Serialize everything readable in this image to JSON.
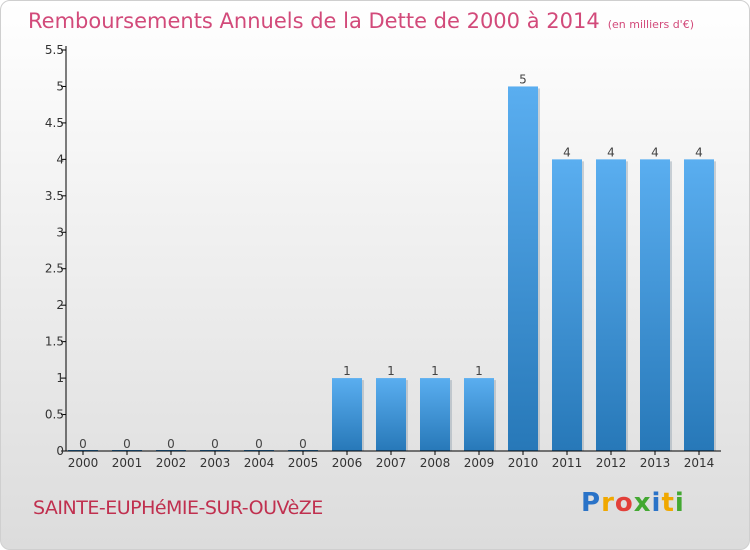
{
  "header": {
    "title": "Remboursements Annuels de la Dette de 2000 à 2014",
    "subtitle": "(en milliers d'€)"
  },
  "footer": {
    "commune": "SAINTE-EUPHéMIE-SUR-OUVèZE",
    "logo": [
      "P",
      "r",
      "o",
      "x",
      "i",
      "t",
      "i"
    ],
    "logo_colors": [
      "#2a73c8",
      "#f0a800",
      "#e2403a",
      "#43a832",
      "#2a73c8",
      "#f0a800",
      "#43a832"
    ]
  },
  "colors": {
    "title": "#d24a7a",
    "bar_top": "#5aaef0",
    "bar_bottom": "#2778b8",
    "axis": "#000000"
  },
  "chart_data": {
    "type": "bar",
    "categories": [
      "2000",
      "2001",
      "2002",
      "2003",
      "2004",
      "2005",
      "2006",
      "2007",
      "2008",
      "2009",
      "2010",
      "2011",
      "2012",
      "2013",
      "2014"
    ],
    "values": [
      0,
      0,
      0,
      0,
      0,
      0,
      1,
      1,
      1,
      1,
      5,
      4,
      4,
      4,
      4
    ],
    "data_labels": [
      "0",
      "0",
      "0",
      "0",
      "0",
      "0",
      "1",
      "1",
      "1",
      "1",
      "5",
      "4",
      "4",
      "4",
      "4"
    ],
    "yticks": [
      0,
      0.5,
      1,
      1.5,
      2,
      2.5,
      3,
      3.5,
      4,
      4.5,
      5,
      5.5
    ],
    "ytick_labels": [
      "0",
      "0.5",
      "1",
      "1.5",
      "2",
      "2.5",
      "3",
      "3.5",
      "4",
      "4.5",
      "5",
      "5.5"
    ],
    "ylim": [
      0,
      5.5
    ],
    "grid": false,
    "legend": "none"
  }
}
